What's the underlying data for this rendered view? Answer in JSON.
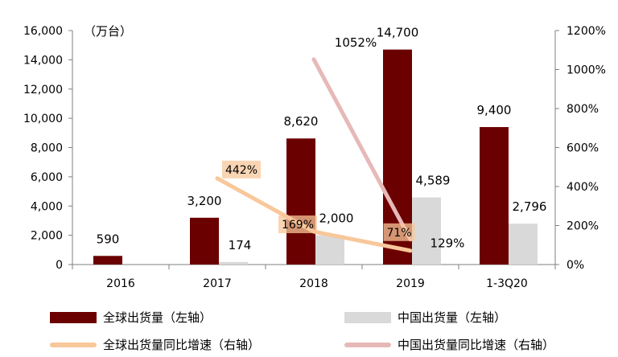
{
  "chart_data": {
    "type": "bar",
    "unit_label": "（万台）",
    "categories": [
      "2016",
      "2017",
      "2018",
      "2019",
      "1-3Q20"
    ],
    "left_axis": {
      "min": 0,
      "max": 16000,
      "step": 2000,
      "tick_labels": [
        "0",
        "2,000",
        "4,000",
        "6,000",
        "8,000",
        "10,000",
        "12,000",
        "14,000",
        "16,000"
      ]
    },
    "right_axis": {
      "min": 0,
      "max": 12,
      "step": 2,
      "tick_labels": [
        "0%",
        "200%",
        "400%",
        "600%",
        "800%",
        "1000%",
        "1200%"
      ]
    },
    "series": [
      {
        "name": "全球出货量（左轴）",
        "kind": "bar",
        "axis": "left",
        "color": "#6b0000",
        "values": [
          590,
          3200,
          8620,
          14700,
          9400
        ],
        "labels": [
          "590",
          "3,200",
          "8,620",
          "14,700",
          "9,400"
        ]
      },
      {
        "name": "中国出货量（左轴）",
        "kind": "bar",
        "axis": "left",
        "color": "#d9d9d9",
        "values": [
          null,
          174,
          2000,
          4589,
          2796
        ],
        "labels": [
          "",
          "174",
          "2,000",
          "4,589",
          "2,796"
        ]
      },
      {
        "name": "全球出货量同比增速（右轴）",
        "kind": "line",
        "axis": "right",
        "color": "#f8c79a",
        "values": [
          null,
          4.42,
          1.69,
          0.71,
          null
        ],
        "labels": [
          "",
          "442%",
          "169%",
          "71%",
          ""
        ]
      },
      {
        "name": "中国出货量同比增速（右轴）",
        "kind": "line",
        "axis": "right",
        "color": "#e6b9b8",
        "values": [
          null,
          null,
          10.52,
          1.29,
          null
        ],
        "labels": [
          "",
          "",
          "1052%",
          "129%",
          ""
        ]
      }
    ],
    "grid": false,
    "legend_position": "bottom"
  }
}
